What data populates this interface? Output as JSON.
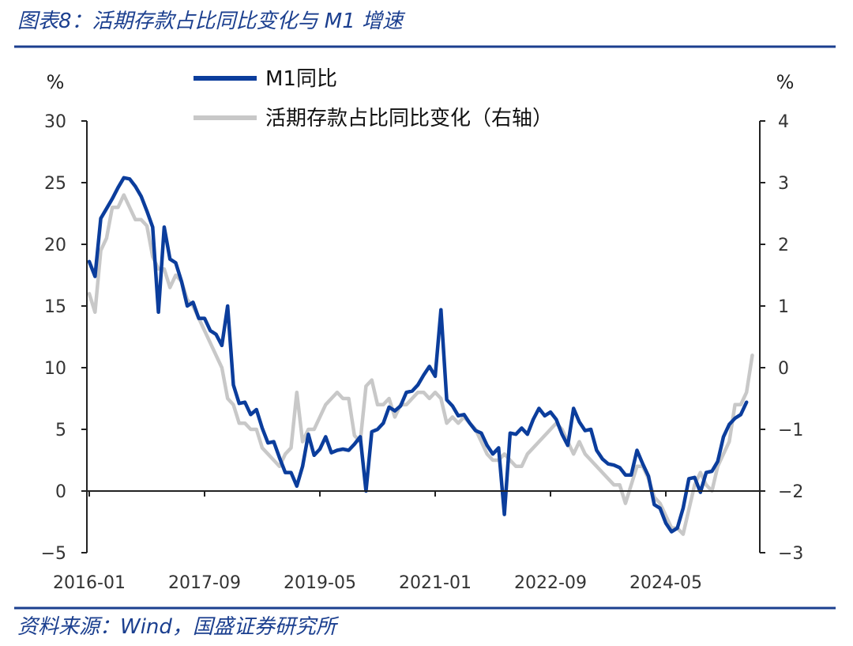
{
  "header": {
    "title": "图表8：活期存款占比同比变化与 M1 增速"
  },
  "footer": {
    "source": "资料来源：Wind，国盛证券研究所"
  },
  "colors": {
    "accent": "#1b3f8f",
    "m1": "#0b3d9c",
    "demand": "#c8c8c8",
    "axis": "#222222"
  },
  "chart_data": {
    "type": "line",
    "x_start": "2016-01",
    "x_ticks": [
      "2016-01",
      "2017-09",
      "2019-05",
      "2021-01",
      "2022-09",
      "2024-05"
    ],
    "y_left": {
      "unit": "%",
      "range": [
        -5,
        30
      ],
      "ticks": [
        -5,
        0,
        5,
        10,
        15,
        20,
        25,
        30
      ]
    },
    "y_right": {
      "unit": "%",
      "range": [
        -3,
        4
      ],
      "ticks": [
        -3,
        -2,
        -1,
        0,
        1,
        2,
        3,
        4
      ]
    },
    "legend_position": "top",
    "grid": false,
    "series": [
      {
        "name": "M1同比",
        "axis": "left",
        "values": [
          18.6,
          17.4,
          22.1,
          22.9,
          23.7,
          24.6,
          25.4,
          25.3,
          24.7,
          23.9,
          22.7,
          21.4,
          14.5,
          21.4,
          18.8,
          18.5,
          17.0,
          15.0,
          15.3,
          14.0,
          14.0,
          13.0,
          12.7,
          11.8,
          15.0,
          8.6,
          7.1,
          7.2,
          6.2,
          6.6,
          5.1,
          3.9,
          4.0,
          2.7,
          1.5,
          1.5,
          0.4,
          2.0,
          4.6,
          2.9,
          3.4,
          4.4,
          3.1,
          3.3,
          3.4,
          3.3,
          3.8,
          4.4,
          0.0,
          4.8,
          5.0,
          5.5,
          6.8,
          6.5,
          6.9,
          8.0,
          8.1,
          8.6,
          9.4,
          10.1,
          9.3,
          14.7,
          7.4,
          6.9,
          6.1,
          6.2,
          5.5,
          4.9,
          4.7,
          3.7,
          3.0,
          3.5,
          -1.9,
          4.7,
          4.6,
          5.1,
          4.6,
          5.8,
          6.7,
          6.1,
          6.4,
          5.8,
          4.6,
          3.7,
          6.7,
          5.6,
          4.9,
          5.0,
          3.3,
          2.6,
          2.2,
          2.1,
          1.9,
          1.3,
          1.3,
          3.3,
          2.2,
          1.2,
          -1.1,
          -1.4,
          -2.6,
          -3.3,
          -3.0,
          -1.4,
          1.0,
          1.1,
          -0.1,
          1.5,
          1.6,
          2.4,
          4.4,
          5.4,
          5.9,
          6.2,
          7.2
        ]
      },
      {
        "name": "活期存款占比同比变化（右轴）",
        "axis": "right",
        "values": [
          1.2,
          0.9,
          1.9,
          2.1,
          2.6,
          2.6,
          2.8,
          2.6,
          2.4,
          2.4,
          2.3,
          1.8,
          1.6,
          1.6,
          1.3,
          1.5,
          1.4,
          1.1,
          1.0,
          0.8,
          0.6,
          0.4,
          0.2,
          0.0,
          -0.5,
          -0.6,
          -0.9,
          -0.9,
          -1.0,
          -1.0,
          -1.3,
          -1.4,
          -1.5,
          -1.6,
          -1.4,
          -1.3,
          -0.4,
          -1.2,
          -1.0,
          -1.0,
          -0.8,
          -0.6,
          -0.5,
          -0.4,
          -0.5,
          -0.5,
          -1.1,
          -1.2,
          -0.3,
          -0.2,
          -0.6,
          -0.6,
          -0.5,
          -0.8,
          -0.6,
          -0.6,
          -0.5,
          -0.4,
          -0.4,
          -0.5,
          -0.4,
          -0.5,
          -0.9,
          -0.8,
          -0.9,
          -0.8,
          -0.9,
          -1.0,
          -1.2,
          -1.4,
          -1.5,
          -1.5,
          -1.4,
          -1.5,
          -1.6,
          -1.6,
          -1.4,
          -1.3,
          -1.2,
          -1.1,
          -1.0,
          -0.9,
          -1.0,
          -1.2,
          -1.4,
          -1.2,
          -1.4,
          -1.5,
          -1.6,
          -1.7,
          -1.8,
          -1.9,
          -1.9,
          -2.2,
          -1.9,
          -1.6,
          -1.6,
          -1.8,
          -2.1,
          -2.2,
          -2.4,
          -2.6,
          -2.6,
          -2.7,
          -2.3,
          -1.9,
          -1.7,
          -1.9,
          -2.0,
          -1.6,
          -1.4,
          -1.2,
          -0.6,
          -0.6,
          -0.4,
          0.2
        ]
      }
    ]
  }
}
